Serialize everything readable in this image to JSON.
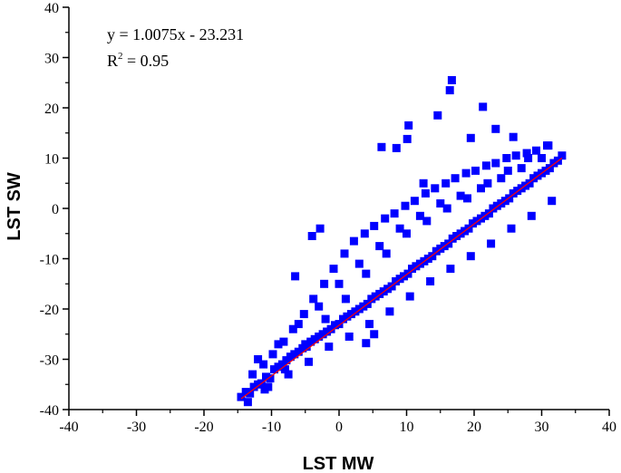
{
  "chart_data": {
    "type": "scatter",
    "title": "",
    "xlabel": "LST MW",
    "ylabel": "LST SW",
    "xlim": [
      -40,
      40
    ],
    "ylim": [
      -40,
      40
    ],
    "x_ticks": [
      -40,
      -30,
      -20,
      -10,
      0,
      10,
      20,
      30,
      40
    ],
    "y_ticks": [
      -40,
      -30,
      -20,
      -10,
      0,
      10,
      20,
      30,
      40
    ],
    "x_tick_labels": [
      "-40",
      "-30",
      "-20",
      "-10",
      "0",
      "10",
      "20",
      "30",
      "40"
    ],
    "y_tick_labels": [
      "-40",
      "-30",
      "-20",
      "-10",
      "0",
      "10",
      "20",
      "30",
      "40"
    ],
    "grid": false,
    "legend": "none",
    "marker_color": "#0000ff",
    "fit_line_color": "#ff0000",
    "fit_line": {
      "slope": 1.0075,
      "intercept": -23.231,
      "x_range": [
        -14.5,
        33
      ]
    },
    "annotations": {
      "equation": "y = 1.0075x - 23.231",
      "r2_prefix": "R",
      "r2_sup": "2",
      "r2_rest": " = 0.95"
    },
    "series": [
      {
        "marker": "square",
        "x": [
          -14.5,
          -13.8,
          -13.2,
          -12.6,
          -12.0,
          -11.5,
          -10.8,
          -10.2,
          -9.6,
          -9.0,
          -8.4,
          -7.8,
          -7.2,
          -6.6,
          -6.0,
          -5.4,
          -4.8,
          -4.2,
          -3.6,
          -3.0,
          -2.4,
          -1.8,
          -1.2,
          -0.6,
          0.0,
          0.6,
          1.2,
          1.8,
          2.4,
          3.0,
          3.6,
          4.2,
          4.8,
          5.4,
          6.0,
          6.6,
          7.2,
          7.8,
          8.4,
          9.0,
          9.6,
          10.2,
          10.8,
          11.4,
          12.0,
          12.6,
          13.2,
          13.8,
          14.4,
          15.0,
          15.6,
          16.2,
          16.8,
          17.4,
          18.0,
          18.6,
          19.2,
          19.8,
          20.4,
          21.0,
          21.6,
          22.2,
          22.8,
          23.4,
          24.0,
          24.6,
          25.2,
          25.8,
          26.4,
          27.0,
          27.6,
          28.2,
          28.8,
          29.4,
          30.0,
          30.6,
          31.2,
          31.8,
          32.4,
          33.0,
          -12.8,
          -11.2,
          -9.8,
          -8.2,
          -6.8,
          -5.2,
          -3.8,
          -2.2,
          -0.8,
          0.8,
          2.2,
          3.8,
          5.2,
          6.8,
          8.2,
          9.8,
          11.2,
          12.8,
          14.2,
          15.8,
          17.2,
          18.8,
          20.2,
          21.8,
          23.2,
          24.8,
          26.2,
          27.8,
          29.2,
          30.8,
          -13.5,
          -10.5,
          -7.5,
          -4.5,
          -1.5,
          1.5,
          4.5,
          7.5,
          10.5,
          13.5,
          16.5,
          19.5,
          22.5,
          25.5,
          28.5,
          31.5,
          -12.0,
          -9.0,
          -6.0,
          -3.0,
          0.0,
          3.0,
          6.0,
          9.0,
          12.0,
          15.0,
          18.0,
          21.0,
          24.0,
          27.0,
          30.0,
          -11.0,
          -8.0,
          -5.0,
          -2.0,
          1.0,
          4.0,
          7.0,
          10.0,
          13.0,
          16.0,
          19.0,
          22.0,
          25.0,
          28.0,
          31.0,
          16.7,
          16.4,
          10.3,
          14.6,
          21.3,
          23.2,
          10.1,
          8.5,
          6.3,
          19.5,
          25.8,
          12.5,
          -4.0,
          -2.8,
          5.2,
          4.0,
          -6.5
        ],
        "y": [
          -37.5,
          -36.5,
          -36.8,
          -35.5,
          -35.0,
          -34.8,
          -33.5,
          -33.8,
          -32.0,
          -31.5,
          -31.0,
          -30.2,
          -29.5,
          -29.0,
          -28.5,
          -27.8,
          -27.5,
          -26.5,
          -26.0,
          -25.5,
          -25.0,
          -24.5,
          -24.0,
          -23.2,
          -23.0,
          -22.0,
          -21.5,
          -21.0,
          -20.5,
          -20.0,
          -19.5,
          -19.0,
          -18.0,
          -17.5,
          -17.0,
          -16.5,
          -16.0,
          -15.5,
          -14.5,
          -14.0,
          -13.5,
          -13.0,
          -12.0,
          -11.5,
          -11.0,
          -10.5,
          -10.0,
          -9.5,
          -8.5,
          -8.0,
          -7.5,
          -7.0,
          -6.0,
          -5.5,
          -5.0,
          -4.5,
          -4.0,
          -3.0,
          -2.5,
          -2.0,
          -1.5,
          -1.0,
          0.0,
          0.5,
          1.0,
          1.5,
          2.0,
          3.0,
          3.5,
          4.0,
          4.5,
          5.0,
          6.0,
          6.5,
          7.0,
          7.5,
          8.0,
          9.0,
          9.5,
          10.5,
          -33.0,
          -31.0,
          -29.0,
          -26.5,
          -24.0,
          -21.0,
          -18.0,
          -15.0,
          -12.0,
          -9.0,
          -6.5,
          -5.0,
          -3.5,
          -2.0,
          -1.0,
          0.5,
          1.5,
          3.0,
          4.0,
          5.0,
          6.0,
          7.0,
          7.5,
          8.5,
          9.0,
          10.0,
          10.5,
          11.0,
          11.5,
          12.5,
          -38.5,
          -35.5,
          -33.0,
          -30.5,
          -27.5,
          -25.5,
          -23.0,
          -20.5,
          -17.5,
          -14.5,
          -12.0,
          -9.5,
          -7.0,
          -4.0,
          -1.5,
          1.5,
          -30.0,
          -27.0,
          -23.0,
          -19.5,
          -15.0,
          -11.0,
          -7.5,
          -4.0,
          -1.5,
          1.0,
          2.5,
          4.0,
          6.0,
          8.0,
          10.0,
          -36.0,
          -32.0,
          -27.0,
          -22.0,
          -18.0,
          -13.0,
          -9.0,
          -5.0,
          -2.5,
          0.0,
          2.0,
          5.0,
          7.5,
          10.0,
          12.5,
          25.5,
          23.5,
          16.5,
          18.5,
          20.2,
          15.8,
          13.8,
          12.0,
          12.2,
          14.0,
          14.2,
          5.0,
          -5.5,
          -4.0,
          -25.0,
          -26.8,
          -13.5
        ]
      }
    ]
  }
}
